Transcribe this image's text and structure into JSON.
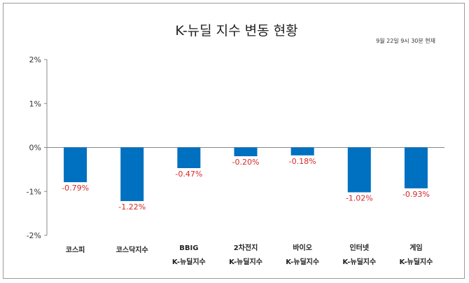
{
  "chart_data": {
    "type": "bar",
    "title": "K-뉴딜 지수 변동 현황",
    "note": "9월 22일 9시 30분 현재",
    "categories": [
      [
        "코스피"
      ],
      [
        "코스닥지수"
      ],
      [
        "BBIG",
        "K-뉴딜지수"
      ],
      [
        "2차전지",
        "K-뉴딜지수"
      ],
      [
        "바이오",
        "K-뉴딜지수"
      ],
      [
        "인터넷",
        "K-뉴딜지수"
      ],
      [
        "게임",
        "K-뉴딜지수"
      ]
    ],
    "values": [
      -0.79,
      -1.22,
      -0.47,
      -0.2,
      -0.18,
      -1.02,
      -0.93
    ],
    "value_labels": [
      "-0.79%",
      "-1.22%",
      "-0.47%",
      "-0.20%",
      "-0.18%",
      "-1.02%",
      "-0.93%"
    ],
    "ylim": [
      -2,
      2
    ],
    "yticks": [
      2,
      1,
      0,
      -1,
      -2
    ],
    "ytick_labels": [
      "2%",
      "1%",
      "0%",
      "-1%",
      "-2%"
    ],
    "bar_color": "#0070c0",
    "label_color": "#d62728",
    "grid": false,
    "legend": "none"
  }
}
